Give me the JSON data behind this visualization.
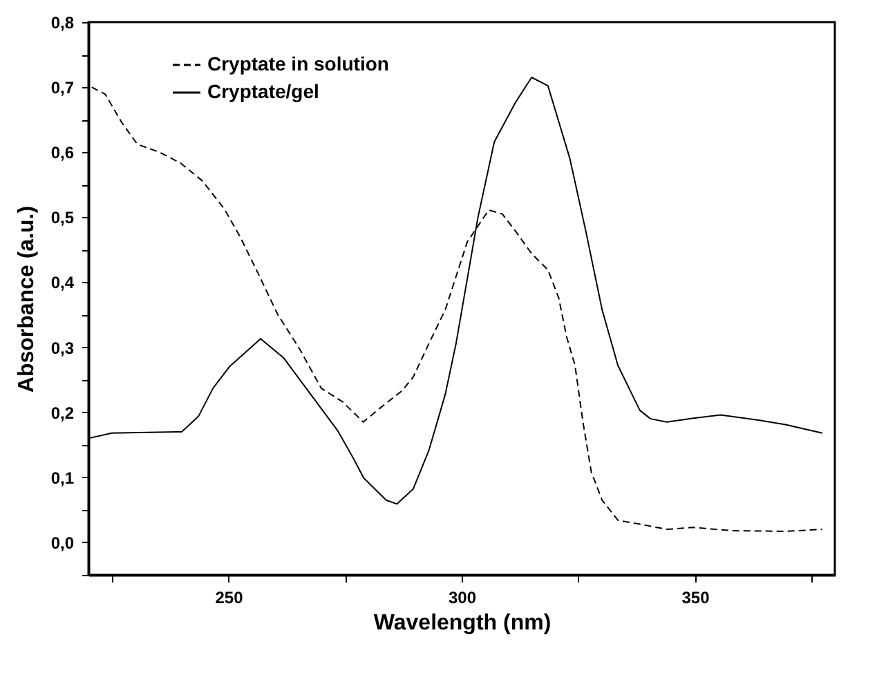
{
  "chart_data": {
    "type": "line",
    "xlabel": "Wavelength (nm)",
    "ylabel": "Absorbance (a.u.)",
    "xlim": [
      220,
      380
    ],
    "ylim": [
      -0.05,
      0.8
    ],
    "xticks": [
      {
        "value": 225,
        "label": null
      },
      250,
      {
        "value": 275,
        "label": null
      },
      300,
      {
        "value": 325,
        "label": null
      },
      350,
      {
        "value": 375,
        "label": null
      }
    ],
    "yticks": [
      {
        "value": -0.05,
        "label": null
      },
      {
        "value": 0,
        "label": "0,0"
      },
      {
        "value": 0.05,
        "label": null
      },
      {
        "value": 0.1,
        "label": "0,1"
      },
      {
        "value": 0.15,
        "label": null
      },
      {
        "value": 0.2,
        "label": "0,2"
      },
      {
        "value": 0.25,
        "label": null
      },
      {
        "value": 0.3,
        "label": "0,3"
      },
      {
        "value": 0.35,
        "label": null
      },
      {
        "value": 0.4,
        "label": "0,4"
      },
      {
        "value": 0.45,
        "label": null
      },
      {
        "value": 0.5,
        "label": "0,5"
      },
      {
        "value": 0.55,
        "label": null
      },
      {
        "value": 0.6,
        "label": "0,6"
      },
      {
        "value": 0.65,
        "label": null
      },
      {
        "value": 0.7,
        "label": "0,7"
      },
      {
        "value": 0.75,
        "label": null
      },
      {
        "value": 0.8,
        "label": "0,8"
      }
    ],
    "grid": false,
    "legend": "top left",
    "marker": "none",
    "series": [
      {
        "name": "Cryptate in solution",
        "color": "#000000",
        "line_style": "dashed",
        "x": [
          220.7,
          223.6,
          227.1,
          230.5,
          235.2,
          239.8,
          244.4,
          249.1,
          252.5,
          256,
          260.6,
          265.3,
          269.9,
          274.5,
          278.9,
          282.6,
          287.2,
          289.6,
          293,
          296.5,
          301.2,
          305.8,
          308.7,
          311.5,
          315,
          318.5,
          320.8,
          322.5,
          324.3,
          326,
          327.8,
          330.1,
          333.5,
          338.2,
          344,
          349.7,
          357.8,
          369.4,
          377.3
        ],
        "values": [
          0.7,
          0.689,
          0.646,
          0.612,
          0.6,
          0.583,
          0.556,
          0.513,
          0.47,
          0.419,
          0.35,
          0.297,
          0.237,
          0.216,
          0.185,
          0.207,
          0.233,
          0.254,
          0.306,
          0.358,
          0.462,
          0.511,
          0.505,
          0.479,
          0.444,
          0.419,
          0.376,
          0.316,
          0.272,
          0.185,
          0.108,
          0.065,
          0.034,
          0.028,
          0.02,
          0.023,
          0.018,
          0.017,
          0.02
        ]
      },
      {
        "name": "Cryptate/gel",
        "color": "#000000",
        "line_style": "solid",
        "x": [
          220,
          225,
          240,
          243.6,
          246.7,
          250.2,
          256.9,
          261.8,
          267.6,
          273.4,
          276.8,
          279,
          283.8,
          286.1,
          289.6,
          293,
          296.5,
          298.8,
          303.5,
          307,
          311.5,
          315,
          318.5,
          323.2,
          326.6,
          330.1,
          333.5,
          338.2,
          340.5,
          344,
          349.7,
          355.5,
          363.6,
          369.4,
          377.3
        ],
        "values": [
          0.16,
          0.168,
          0.17,
          0.194,
          0.237,
          0.27,
          0.313,
          0.284,
          0.228,
          0.172,
          0.129,
          0.099,
          0.065,
          0.059,
          0.082,
          0.142,
          0.228,
          0.306,
          0.5,
          0.616,
          0.676,
          0.715,
          0.702,
          0.59,
          0.479,
          0.358,
          0.272,
          0.203,
          0.19,
          0.185,
          0.191,
          0.196,
          0.188,
          0.181,
          0.168
        ]
      }
    ]
  }
}
